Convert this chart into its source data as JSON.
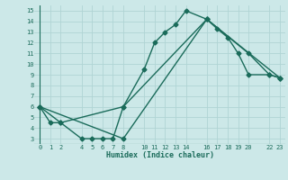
{
  "xlabel": "Humidex (Indice chaleur)",
  "bg_color": "#cce8e8",
  "grid_color": "#b0d4d4",
  "line_color": "#1a6b5a",
  "xlim": [
    -0.5,
    23.5
  ],
  "ylim": [
    2.5,
    15.5
  ],
  "xticks": [
    0,
    1,
    2,
    4,
    5,
    6,
    7,
    8,
    10,
    11,
    12,
    13,
    14,
    16,
    17,
    18,
    19,
    20,
    22,
    23
  ],
  "yticks": [
    3,
    4,
    5,
    6,
    7,
    8,
    9,
    10,
    11,
    12,
    13,
    14,
    15
  ],
  "line1_x": [
    0,
    1,
    2,
    4,
    5,
    6,
    7,
    8,
    10,
    11,
    12,
    13,
    14,
    16,
    17,
    18,
    19,
    20,
    22,
    23
  ],
  "line1_y": [
    6,
    4.5,
    4.5,
    3,
    3,
    3,
    3,
    6,
    9.5,
    12,
    13,
    13.7,
    15,
    14.2,
    13.3,
    12.5,
    11,
    9,
    9,
    8.7
  ],
  "line2_x": [
    0,
    2,
    8,
    16,
    20,
    22,
    23
  ],
  "line2_y": [
    6,
    4.5,
    6,
    14.2,
    11,
    9,
    8.7
  ],
  "line3_x": [
    0,
    8,
    16,
    23
  ],
  "line3_y": [
    6,
    3,
    14.2,
    8.7
  ],
  "marker": "D",
  "markersize": 2.5,
  "linewidth": 1.0
}
